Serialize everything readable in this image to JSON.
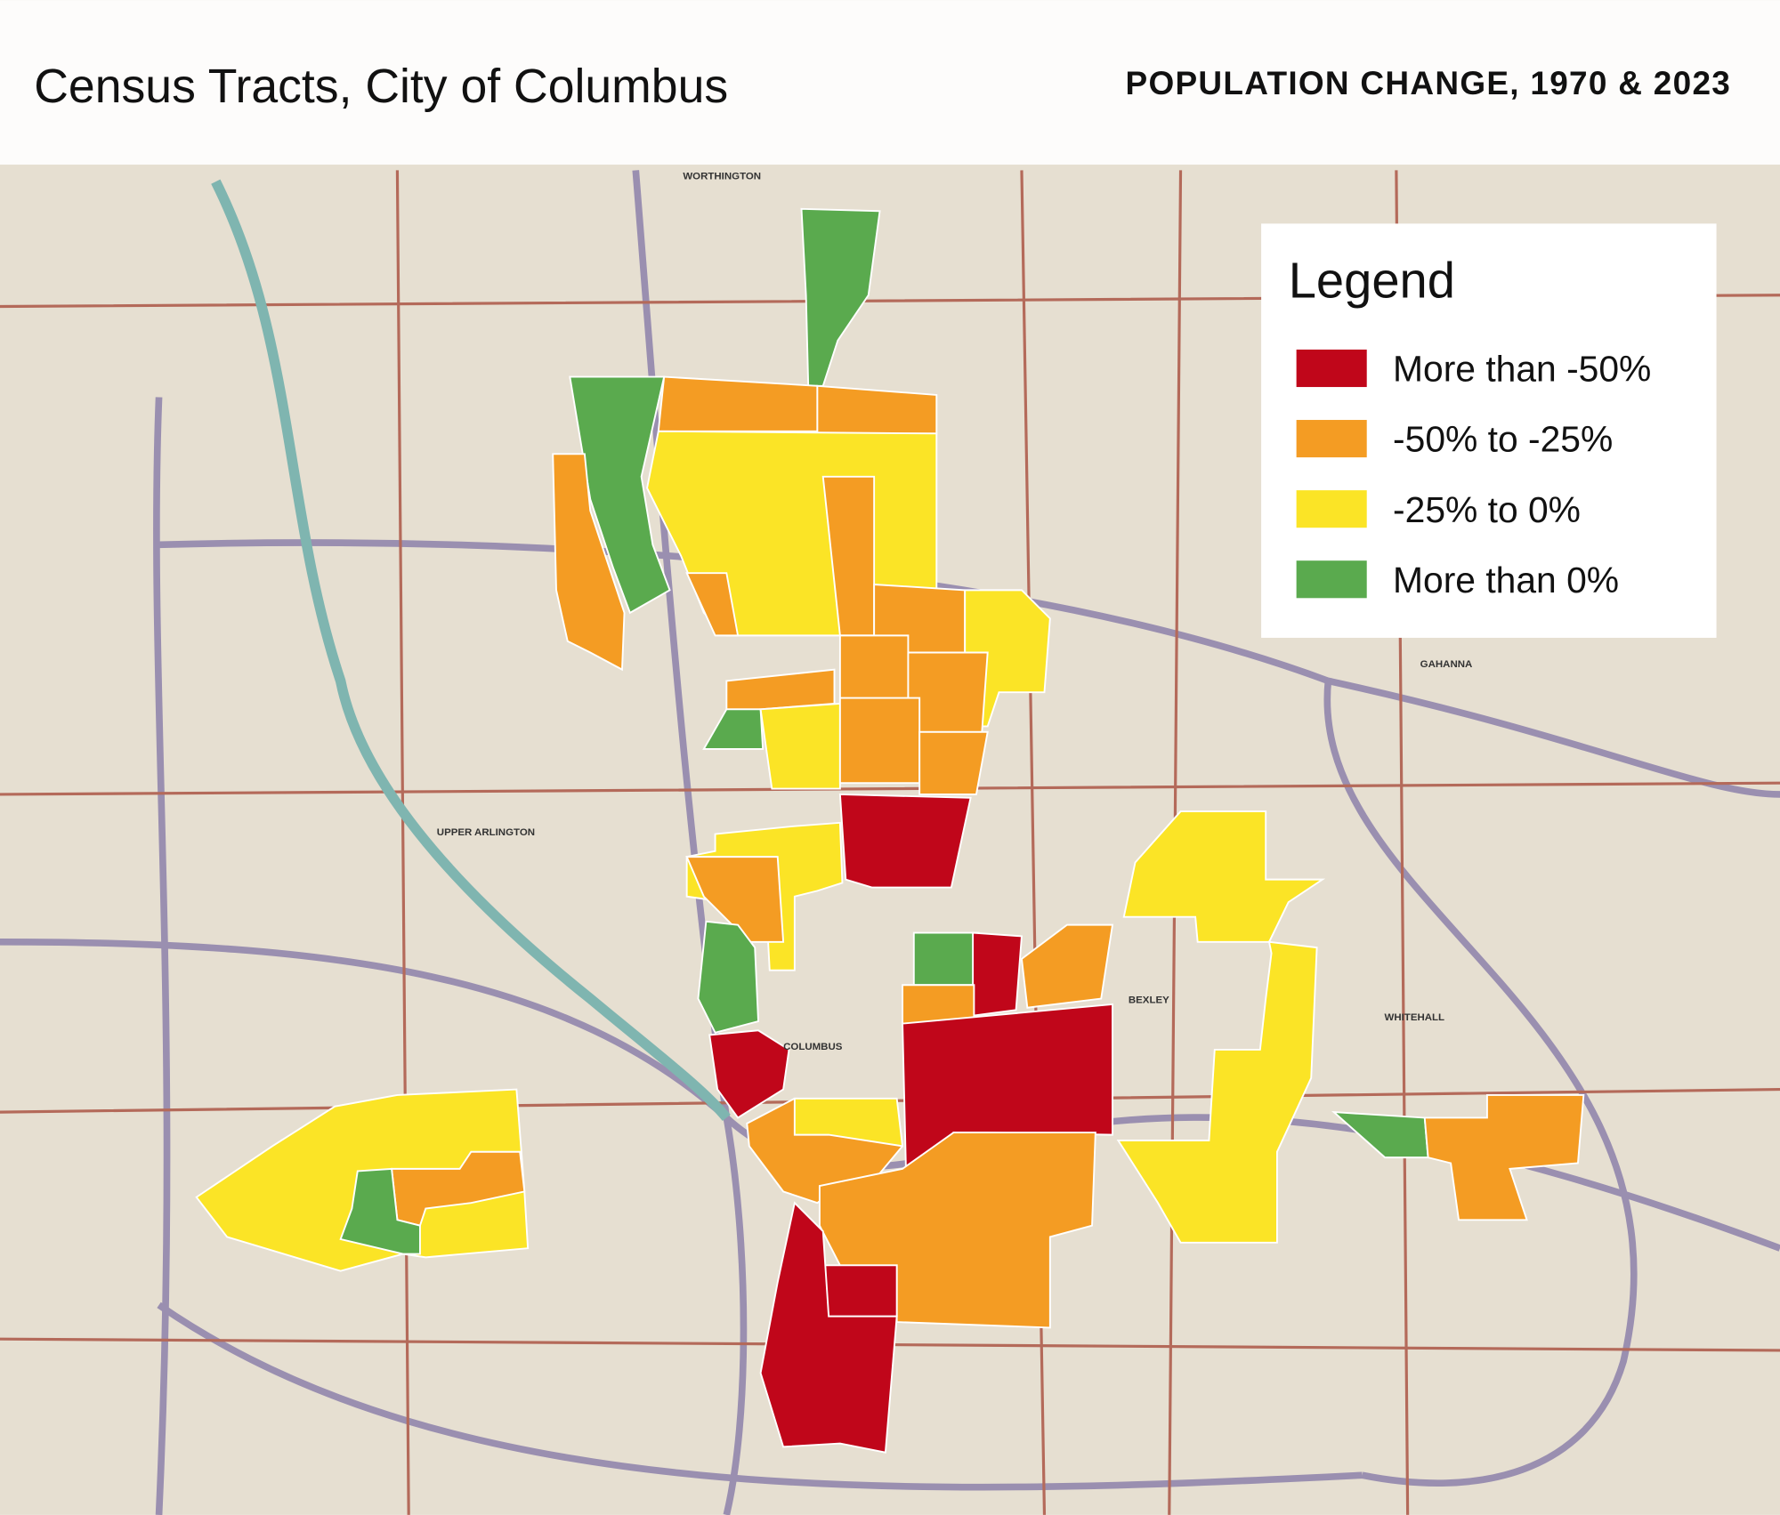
{
  "header": {
    "title": "Census Tracts, City of Columbus",
    "subtitle": "POPULATION CHANGE, 1970 & 2023"
  },
  "legend": {
    "title": "Legend",
    "items": [
      {
        "label": "More than -50%",
        "color": "#c0061a"
      },
      {
        "label": "-50% to -25%",
        "color": "#f49c23"
      },
      {
        "label": "-25% to 0%",
        "color": "#fbe426"
      },
      {
        "label": "More than 0%",
        "color": "#5aaa4e"
      }
    ]
  },
  "map": {
    "places": [
      {
        "name": "WORTHINGTON"
      },
      {
        "name": "UPPER ARLINGTON"
      },
      {
        "name": "COLUMBUS"
      },
      {
        "name": "BEXLEY"
      },
      {
        "name": "WHITEHALL"
      },
      {
        "name": "GAHANNA"
      }
    ]
  }
}
